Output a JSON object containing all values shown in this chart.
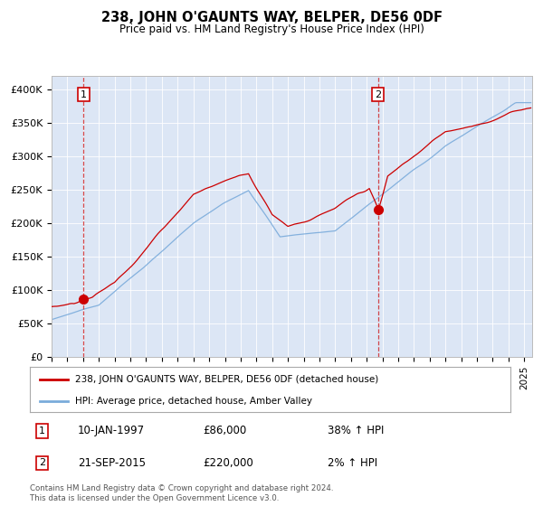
{
  "title": "238, JOHN O'GAUNTS WAY, BELPER, DE56 0DF",
  "subtitle": "Price paid vs. HM Land Registry's House Price Index (HPI)",
  "ylabel_ticks": [
    "£0",
    "£50K",
    "£100K",
    "£150K",
    "£200K",
    "£250K",
    "£300K",
    "£350K",
    "£400K"
  ],
  "ytick_values": [
    0,
    50000,
    100000,
    150000,
    200000,
    250000,
    300000,
    350000,
    400000
  ],
  "ylim": [
    0,
    420000
  ],
  "xlim_start": 1995.0,
  "xlim_end": 2025.5,
  "sale1_date": 1997.03,
  "sale1_price": 86000,
  "sale1_label": "1",
  "sale2_date": 2015.72,
  "sale2_price": 220000,
  "sale2_label": "2",
  "red_line_color": "#cc0000",
  "blue_line_color": "#7aabdb",
  "background_color": "#dce6f5",
  "grid_color": "#ffffff",
  "legend_line1": "238, JOHN O'GAUNTS WAY, BELPER, DE56 0DF (detached house)",
  "legend_line2": "HPI: Average price, detached house, Amber Valley",
  "annotation1_date": "10-JAN-1997",
  "annotation1_price": "£86,000",
  "annotation1_hpi": "38% ↑ HPI",
  "annotation2_date": "21-SEP-2015",
  "annotation2_price": "£220,000",
  "annotation2_hpi": "2% ↑ HPI",
  "footer": "Contains HM Land Registry data © Crown copyright and database right 2024.\nThis data is licensed under the Open Government Licence v3.0."
}
